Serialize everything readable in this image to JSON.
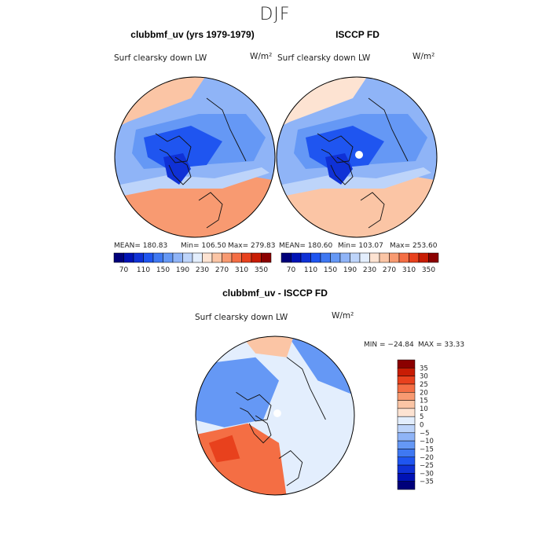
{
  "season": "DJF",
  "chart_data": [
    {
      "type": "heatmap",
      "projection": "north-polar-stereographic",
      "title": "clubbmf_uv (yrs 1979-1979)",
      "variable": "Surf clearsky down LW",
      "units": "W/m²",
      "stats": {
        "mean": "MEAN= 180.83",
        "min": "Min= 106.50",
        "max": "Max= 279.83"
      },
      "colorbar": {
        "levels": [
          70,
          90,
          110,
          130,
          150,
          170,
          190,
          210,
          230,
          250,
          270,
          290,
          310,
          330,
          350
        ],
        "tick_labels": [
          "70",
          "110",
          "150",
          "190",
          "230",
          "270",
          "310",
          "350"
        ]
      },
      "regions_wm2": {
        "central_arctic_canada": 120,
        "greenland_core": 107,
        "siberia": 150,
        "north_atlantic": 280,
        "north_pacific": 250
      }
    },
    {
      "type": "heatmap",
      "projection": "north-polar-stereographic",
      "title": "ISCCP FD",
      "variable": "Surf clearsky down LW",
      "units": "W/m²",
      "stats": {
        "mean": "MEAN= 180.60",
        "min": "Min= 103.07",
        "max": "Max= 253.60"
      },
      "colorbar": {
        "levels": [
          70,
          90,
          110,
          130,
          150,
          170,
          190,
          210,
          230,
          250,
          270,
          290,
          310,
          330,
          350
        ],
        "tick_labels": [
          "70",
          "110",
          "150",
          "190",
          "230",
          "270",
          "310",
          "350"
        ]
      },
      "missing_data": "pole",
      "regions_wm2": {
        "central_arctic_canada": 125,
        "greenland_core": 103,
        "siberia": 150,
        "north_atlantic": 254,
        "north_pacific": 240
      }
    },
    {
      "type": "heatmap",
      "projection": "north-polar-stereographic",
      "title": "clubbmf_uv - ISCCP FD",
      "variable": "Surf clearsky down LW",
      "units": "W/m²",
      "stats": {
        "min": "MIN = −24.84",
        "max": "MAX =  33.33"
      },
      "colorbar": {
        "levels": [
          -35,
          -30,
          -25,
          -20,
          -15,
          -10,
          -5,
          0,
          5,
          10,
          15,
          20,
          25,
          30,
          35
        ],
        "tick_labels": [
          "35",
          "30",
          "25",
          "20",
          "15",
          "10",
          "5",
          "0",
          "−5",
          "−10",
          "−15",
          "−20",
          "−25",
          "−30",
          "−35"
        ]
      },
      "missing_data": "pole",
      "regions_wm2": {
        "canadian_arctic": -15,
        "north_atlantic": 20,
        "barents_sea": 25,
        "alaska": 10,
        "siberia": -3
      }
    }
  ],
  "colors": {
    "diverging": [
      "#00007a",
      "#0012b5",
      "#0f31d6",
      "#1f55f0",
      "#3f78f2",
      "#6598f5",
      "#8fb4f7",
      "#bdd4fa",
      "#e3eefd",
      "#fde3d2",
      "#fbc5a5",
      "#f89a71",
      "#f46e44",
      "#e8411d",
      "#c81c04",
      "#8b0000"
    ]
  }
}
